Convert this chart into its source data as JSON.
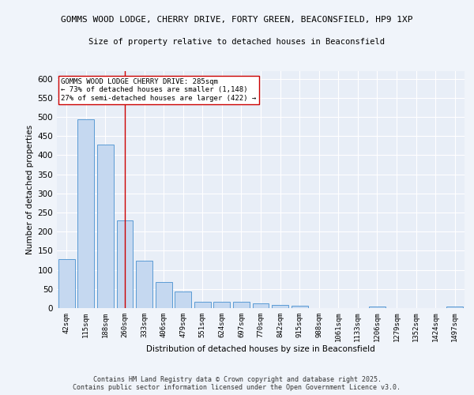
{
  "title1": "GOMMS WOOD LODGE, CHERRY DRIVE, FORTY GREEN, BEACONSFIELD, HP9 1XP",
  "title2": "Size of property relative to detached houses in Beaconsfield",
  "xlabel": "Distribution of detached houses by size in Beaconsfield",
  "ylabel": "Number of detached properties",
  "categories": [
    "42sqm",
    "115sqm",
    "188sqm",
    "260sqm",
    "333sqm",
    "406sqm",
    "479sqm",
    "551sqm",
    "624sqm",
    "697sqm",
    "770sqm",
    "842sqm",
    "915sqm",
    "988sqm",
    "1061sqm",
    "1133sqm",
    "1206sqm",
    "1279sqm",
    "1352sqm",
    "1424sqm",
    "1497sqm"
  ],
  "values": [
    128,
    493,
    428,
    230,
    124,
    68,
    44,
    16,
    16,
    16,
    12,
    8,
    6,
    0,
    0,
    0,
    5,
    0,
    0,
    0,
    4
  ],
  "bar_color": "#c5d8f0",
  "bar_edge_color": "#5b9bd5",
  "vline_x": 3,
  "vline_color": "#cc0000",
  "annotation_line1": "GOMMS WOOD LODGE CHERRY DRIVE: 285sqm",
  "annotation_line2": "← 73% of detached houses are smaller (1,148)",
  "annotation_line3": "27% of semi-detached houses are larger (422) →",
  "annotation_box_color": "#ffffff",
  "annotation_edge_color": "#cc0000",
  "ylim": [
    0,
    620
  ],
  "yticks": [
    0,
    50,
    100,
    150,
    200,
    250,
    300,
    350,
    400,
    450,
    500,
    550,
    600
  ],
  "fig_bg_color": "#f0f4fa",
  "background_color": "#e8eef7",
  "grid_color": "#ffffff",
  "footer1": "Contains HM Land Registry data © Crown copyright and database right 2025.",
  "footer2": "Contains public sector information licensed under the Open Government Licence v3.0."
}
